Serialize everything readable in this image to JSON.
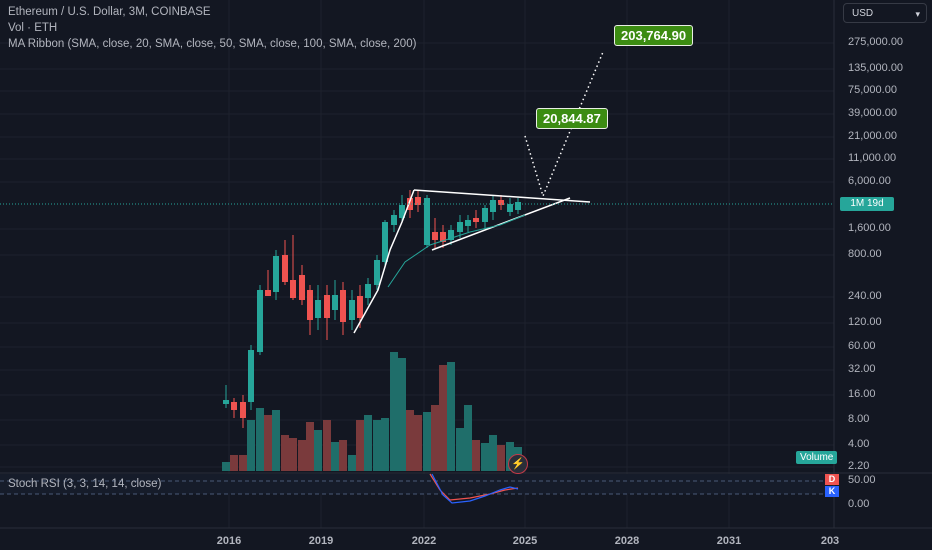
{
  "header": {
    "symbol_line": "Ethereum / U.S. Dollar, 3M, COINBASE",
    "volume_line": "Vol · ETH",
    "ma_line": "MA Ribbon (SMA, close, 20, SMA, close, 50, SMA, close, 100, SMA, close, 200)"
  },
  "currency_button": "USD",
  "price_axis": [
    "275,000.00",
    "135,000.00",
    "75,000.00",
    "39,000.00",
    "21,000.00",
    "11,000.00",
    "6,000.00",
    "1,600.00",
    "800.00",
    "240.00",
    "120.00",
    "60.00",
    "32.00",
    "16.00",
    "8.00",
    "4.00",
    "2.20"
  ],
  "countdown": "1M 19d",
  "volume_tag": "Volume",
  "stoch": {
    "label": "Stoch RSI (3, 3, 14, 14, close)",
    "axis": [
      "50.00",
      "0.00"
    ],
    "d_tag": "D",
    "k_tag": "K"
  },
  "time_axis": [
    "2016",
    "2019",
    "2022",
    "2025",
    "2028",
    "2031",
    "203"
  ],
  "targets": {
    "first": "20,844.87",
    "second": "203,764.90"
  },
  "colors": {
    "up": "#26a69a",
    "down": "#ef5350",
    "target_box": "#3c8c12",
    "d_line": "#ef5350",
    "k_line": "#2962ff",
    "background": "#131722"
  },
  "icons": {
    "lightning": "lightning-icon",
    "chevron": "chevron-down-icon"
  }
}
